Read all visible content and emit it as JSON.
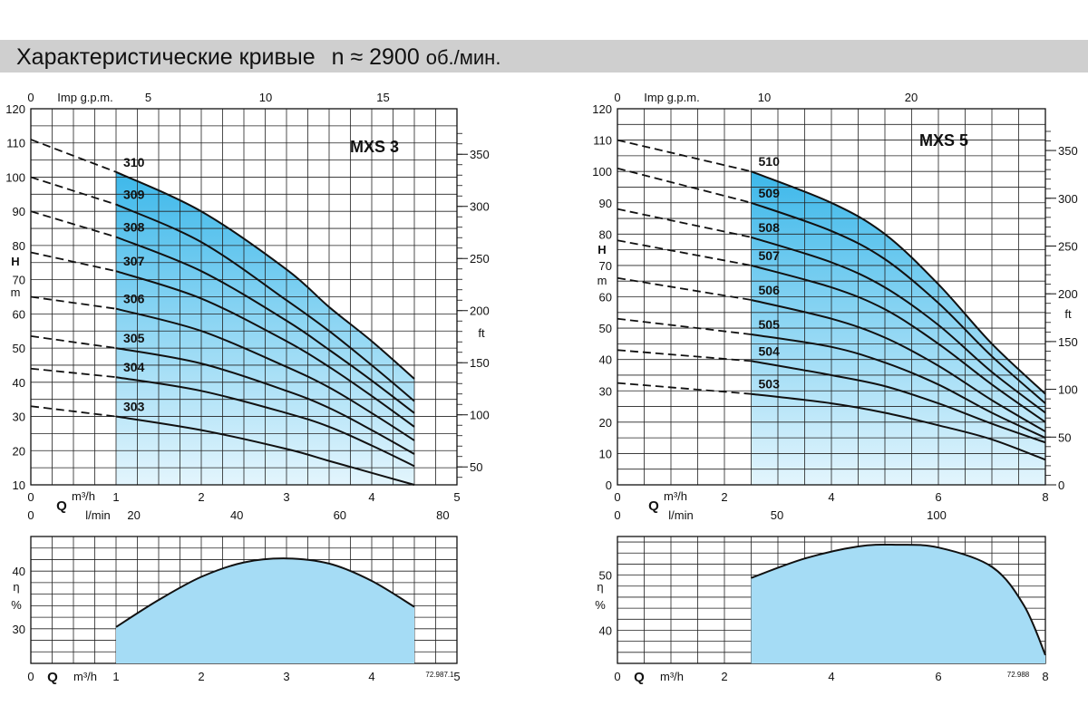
{
  "header": {
    "title": "Характеристические кривые",
    "speed": "n ≈ 2900",
    "speed_unit": "об./мин."
  },
  "colors": {
    "fill_top": "#3db8ea",
    "fill_bottom": "#dff3fc",
    "eff_fill": "#a5dcf5",
    "curve": "#111111",
    "grid": "#222222",
    "title_bar": "#cfcfcf"
  },
  "chart_data": [
    {
      "type": "line",
      "title": "MXS 3",
      "xlabel": "Q m³/h",
      "ylabel": "H m",
      "xlim": [
        0,
        5
      ],
      "ylim": [
        10,
        120
      ],
      "x_ticks": [
        "0",
        "1",
        "2",
        "3",
        "4",
        "5"
      ],
      "y_ticks": [
        "10",
        "20",
        "30",
        "40",
        "50",
        "60",
        "70",
        "80",
        "90",
        "100",
        "110",
        "120"
      ],
      "x2_label": "Imp g.p.m.",
      "x2_ticks": [
        {
          "value": 0,
          "label": "0"
        },
        {
          "value": 5,
          "label": "5"
        },
        {
          "value": 10,
          "label": "10"
        },
        {
          "value": 15,
          "label": "15"
        }
      ],
      "x3_label": "l/min",
      "x3_ticks": [
        {
          "value": 0,
          "label": "0"
        },
        {
          "value": 20,
          "label": "20"
        },
        {
          "value": 40,
          "label": "40"
        },
        {
          "value": 60,
          "label": "60"
        },
        {
          "value": 80,
          "label": "80"
        }
      ],
      "y2_label": "ft",
      "y2_ticks": [
        {
          "value": 50,
          "label": "50"
        },
        {
          "value": 100,
          "label": "100"
        },
        {
          "value": 150,
          "label": "150"
        },
        {
          "value": 200,
          "label": "200"
        },
        {
          "value": 250,
          "label": "250"
        },
        {
          "value": 300,
          "label": "300"
        },
        {
          "value": 350,
          "label": "350"
        }
      ],
      "operating_range": [
        1,
        4.5
      ],
      "series": [
        {
          "name": "310",
          "x": [
            0,
            1,
            2,
            3,
            3.5,
            4,
            4.5
          ],
          "y": [
            111,
            101.5,
            90,
            73,
            62,
            52,
            41
          ]
        },
        {
          "name": "309",
          "x": [
            0,
            1,
            2,
            3,
            3.5,
            4,
            4.5
          ],
          "y": [
            100,
            92,
            81,
            64,
            55,
            45,
            34.5
          ]
        },
        {
          "name": "308",
          "x": [
            0,
            1,
            2,
            3,
            3.5,
            4,
            4.5
          ],
          "y": [
            90,
            82.5,
            72.5,
            58,
            49.5,
            40.5,
            31
          ]
        },
        {
          "name": "307",
          "x": [
            0,
            1,
            2,
            3,
            3.5,
            4,
            4.5
          ],
          "y": [
            78,
            72.5,
            64.5,
            52,
            44.5,
            36,
            27
          ]
        },
        {
          "name": "306",
          "x": [
            0,
            1,
            2,
            3,
            3.5,
            4,
            4.5
          ],
          "y": [
            65,
            61.5,
            55,
            44.5,
            38.5,
            31,
            23
          ]
        },
        {
          "name": "305",
          "x": [
            0,
            1,
            2,
            3,
            3.5,
            4,
            4.5
          ],
          "y": [
            53.5,
            50,
            45.5,
            37.5,
            32.5,
            26,
            19
          ]
        },
        {
          "name": "304",
          "x": [
            0,
            1,
            2,
            3,
            3.5,
            4,
            4.5
          ],
          "y": [
            44,
            41.5,
            37.5,
            31,
            27,
            21.5,
            15.5
          ]
        },
        {
          "name": "303",
          "x": [
            0,
            1,
            2,
            3,
            3.5,
            4,
            4.5
          ],
          "y": [
            33,
            30,
            26,
            20.5,
            17,
            13.5,
            10
          ]
        }
      ],
      "efficiency": {
        "ylabel": "η %",
        "y_ticks": [
          "30",
          "40"
        ],
        "ylim": [
          24,
          46
        ],
        "x": [
          1,
          1.5,
          2,
          2.5,
          3,
          3.5,
          4,
          4.5
        ],
        "y": [
          30.3,
          35,
          39,
          41.5,
          42.2,
          41.3,
          38.3,
          33.8
        ]
      },
      "code": "72.987.1"
    },
    {
      "type": "line",
      "title": "MXS 5",
      "xlabel": "Q m³/h",
      "ylabel": "H m",
      "xlim": [
        0,
        8
      ],
      "ylim": [
        0,
        120
      ],
      "x_ticks": [
        "0",
        "2",
        "4",
        "6",
        "8"
      ],
      "y_ticks": [
        "0",
        "10",
        "20",
        "30",
        "40",
        "50",
        "60",
        "70",
        "80",
        "90",
        "100",
        "110",
        "120"
      ],
      "x2_label": "Imp g.p.m.",
      "x2_ticks": [
        {
          "value": 0,
          "label": "0"
        },
        {
          "value": 10,
          "label": "10"
        },
        {
          "value": 20,
          "label": "20"
        }
      ],
      "x3_label": "l/min",
      "x3_ticks": [
        {
          "value": 0,
          "label": "0"
        },
        {
          "value": 50,
          "label": "50"
        },
        {
          "value": 100,
          "label": "100"
        }
      ],
      "y2_label": "ft",
      "y2_ticks": [
        {
          "value": 0,
          "label": "0"
        },
        {
          "value": 50,
          "label": "50"
        },
        {
          "value": 100,
          "label": "100"
        },
        {
          "value": 150,
          "label": "150"
        },
        {
          "value": 200,
          "label": "200"
        },
        {
          "value": 250,
          "label": "250"
        },
        {
          "value": 300,
          "label": "300"
        },
        {
          "value": 350,
          "label": "350"
        }
      ],
      "operating_range": [
        2.5,
        8
      ],
      "series": [
        {
          "name": "510",
          "x": [
            0,
            2.5,
            4,
            5,
            6,
            7,
            8
          ],
          "y": [
            110,
            100,
            90,
            80,
            64,
            45,
            29
          ]
        },
        {
          "name": "509",
          "x": [
            0,
            2.5,
            4,
            5,
            6,
            7,
            8
          ],
          "y": [
            101,
            90,
            81,
            72,
            58,
            41,
            26
          ]
        },
        {
          "name": "508",
          "x": [
            0,
            2.5,
            4,
            5,
            6,
            7,
            8
          ],
          "y": [
            88,
            79,
            71,
            63,
            51,
            36,
            23
          ]
        },
        {
          "name": "507",
          "x": [
            0,
            2.5,
            4,
            5,
            6,
            7,
            8
          ],
          "y": [
            78,
            70,
            63,
            56,
            45,
            32,
            20
          ]
        },
        {
          "name": "506",
          "x": [
            0,
            2.5,
            4,
            5,
            6,
            7,
            8
          ],
          "y": [
            66,
            59,
            53,
            47,
            38,
            27,
            17
          ]
        },
        {
          "name": "505",
          "x": [
            0,
            2.5,
            4,
            5,
            6,
            7,
            8
          ],
          "y": [
            53,
            48,
            44,
            39,
            32,
            23,
            15
          ]
        },
        {
          "name": "504",
          "x": [
            0,
            2.5,
            4,
            5,
            6,
            7,
            8
          ],
          "y": [
            43,
            39.5,
            35,
            31.5,
            26,
            19.5,
            13.5
          ]
        },
        {
          "name": "503",
          "x": [
            0,
            2.5,
            4,
            5,
            6,
            7,
            8
          ],
          "y": [
            32.5,
            29,
            26,
            23,
            19,
            14.5,
            8
          ]
        }
      ],
      "efficiency": {
        "ylabel": "η %",
        "y_ticks": [
          "40",
          "50"
        ],
        "ylim": [
          34,
          57
        ],
        "x": [
          2.5,
          3.5,
          4.5,
          5.2,
          6,
          7,
          7.6,
          8
        ],
        "y": [
          49.5,
          53,
          55.2,
          55.5,
          55,
          51.5,
          44.5,
          35.5
        ]
      },
      "code": "72.988"
    }
  ]
}
